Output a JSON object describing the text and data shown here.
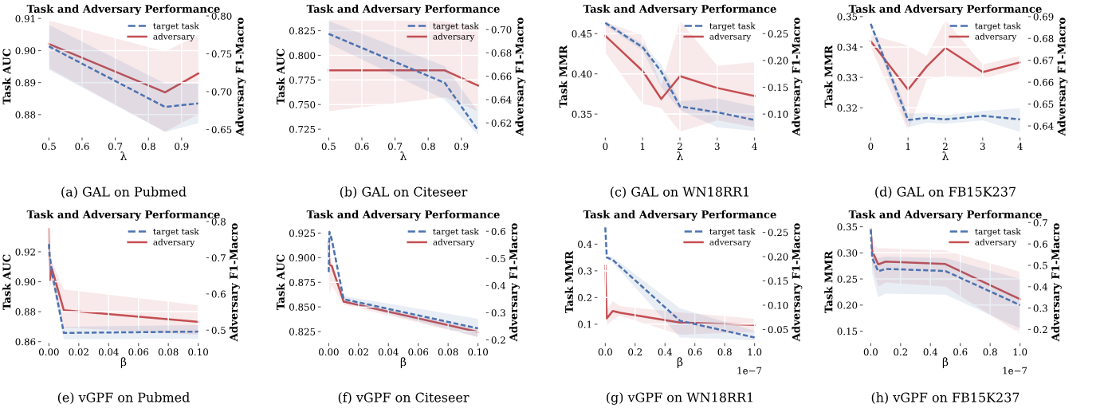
{
  "chart_data": [
    {
      "type": "line",
      "title": "Task and Adversary Performance",
      "xlabel": "λ",
      "ylabel": "Task AUC",
      "y2label": "Adversary F1-Macro",
      "annotations": [
        "(a) GAL on Pubmed"
      ],
      "legend": "top right",
      "grid": true,
      "x": [
        0.5,
        0.85,
        0.95
      ],
      "series": [
        {
          "name": "target task",
          "color": "#4c72b0",
          "line_style": "dashed",
          "values": [
            0.9013,
            0.8824,
            0.8835
          ],
          "lower": [
            0.894,
            0.8746,
            0.8773
          ],
          "upper": [
            0.908,
            0.8897,
            0.8897
          ]
        },
        {
          "name": "adversary",
          "color": "#c44e52",
          "line_style": "solid",
          "axis": "y2",
          "values": [
            0.763,
            0.699,
            0.724
          ],
          "lower": [
            0.731,
            0.647,
            0.67
          ],
          "upper": [
            0.794,
            0.753,
            0.775
          ]
        }
      ],
      "xlim": [
        0.4775,
        0.9725
      ],
      "xticks": [
        0.5,
        0.6,
        0.7,
        0.8,
        0.9
      ],
      "ylim": [
        0.873,
        0.9108
      ],
      "yticks": [
        {
          "value": 0.88,
          "label": "0.88"
        },
        {
          "value": 0.89,
          "label": "0.89"
        },
        {
          "value": 0.9,
          "label": "0.90"
        },
        {
          "value": 0.91,
          "label": "0.91"
        }
      ],
      "y2lim": [
        0.64,
        0.8
      ],
      "y2ticks": [
        {
          "value": 0.65,
          "label": "0.65"
        },
        {
          "value": 0.7,
          "label": "0.70"
        },
        {
          "value": 0.75,
          "label": "0.75"
        },
        {
          "value": 0.8,
          "label": "0.80"
        }
      ]
    },
    {
      "type": "line",
      "title": "Task and Adversary Performance",
      "xlabel": "λ",
      "ylabel": "Task AUC",
      "y2label": "Adversary F1-Macro",
      "annotations": [
        "(b) GAL on Citeseer"
      ],
      "legend": "top right",
      "grid": true,
      "x": [
        0.5,
        0.85,
        0.95
      ],
      "series": [
        {
          "name": "target task",
          "color": "#4c72b0",
          "line_style": "dashed",
          "values": [
            0.8218,
            0.772,
            0.724
          ],
          "lower": [
            0.812,
            0.755,
            0.719
          ],
          "upper": [
            0.835,
            0.789,
            0.743
          ]
        },
        {
          "name": "adversary",
          "color": "#c44e52",
          "line_style": "solid",
          "axis": "y2",
          "values": [
            0.665,
            0.665,
            0.652
          ],
          "lower": [
            0.63,
            0.642,
            0.63
          ],
          "upper": [
            0.708,
            0.707,
            0.701
          ]
        }
      ],
      "xlim": [
        0.4775,
        0.9725
      ],
      "xticks": [
        0.5,
        0.6,
        0.7,
        0.8,
        0.9
      ],
      "ylim": [
        0.717,
        0.84
      ],
      "yticks": [
        0.725,
        {
          "value": 0.75,
          "label": "0.750"
        },
        0.775,
        {
          "value": 0.8,
          "label": "0.800"
        },
        0.825
      ],
      "y2lim": [
        0.6079,
        0.7116
      ],
      "y2ticks": [
        {
          "value": 0.62,
          "label": "0.62"
        },
        {
          "value": 0.64,
          "label": "0.64"
        },
        {
          "value": 0.66,
          "label": "0.66"
        },
        {
          "value": 0.68,
          "label": "0.68"
        },
        {
          "value": 0.7,
          "label": "0.70"
        }
      ]
    },
    {
      "type": "line",
      "title": "Task and Adversary Performance",
      "xlabel": "λ",
      "ylabel": "Task MMR",
      "y2label": "Adversary F1-Macro",
      "annotations": [
        "(c) GAL on WN18RR1"
      ],
      "legend": "top right",
      "grid": true,
      "x": [
        0,
        1,
        1.5,
        2,
        3,
        4
      ],
      "series": [
        {
          "name": "target task",
          "color": "#4c72b0",
          "line_style": "dashed",
          "values": [
            0.4634,
            0.4331,
            0.4028,
            0.3595,
            0.3522,
            0.3426
          ],
          "lower": [
            0.4604,
            0.4288,
            0.3833,
            0.3552,
            0.3335,
            0.3292
          ],
          "upper": [
            0.4656,
            0.4374,
            0.4115,
            0.366,
            0.3695,
            0.3595
          ]
        },
        {
          "name": "adversary",
          "color": "#c44e52",
          "line_style": "solid",
          "axis": "y2",
          "values": [
            0.2461,
            0.1805,
            0.128,
            0.1708,
            0.1487,
            0.1338
          ],
          "lower": [
            0.215,
            0.119,
            0.111,
            0.067,
            0.0883,
            0.0753
          ],
          "upper": [
            0.272,
            0.247,
            0.153,
            0.2747,
            0.19,
            0.1968
          ]
        }
      ],
      "xlim": [
        -0.2,
        4.2
      ],
      "xticks": [
        0,
        1,
        2,
        3,
        4
      ],
      "ylim": [
        0.3214,
        0.472
      ],
      "yticks": [
        0.35,
        {
          "value": 0.4,
          "label": "0.40"
        },
        0.45
      ],
      "y2lim": [
        0.0571,
        0.2831
      ],
      "y2ticks": [
        {
          "value": 0.1,
          "label": "0.10"
        },
        0.15,
        {
          "value": 0.2,
          "label": "0.20"
        },
        0.25
      ]
    },
    {
      "type": "line",
      "title": "Task and Adversary Performance",
      "xlabel": "λ",
      "ylabel": "Task MMR",
      "y2label": "Adversary F1-Macro",
      "annotations": [
        "(d) GAL on FB15K237"
      ],
      "legend": "top right",
      "grid": true,
      "x": [
        0,
        1,
        1.5,
        2,
        3,
        4
      ],
      "series": [
        {
          "name": "target task",
          "color": "#4c72b0",
          "line_style": "dashed",
          "values": [
            0.3476,
            0.316,
            0.3167,
            0.3162,
            0.3174,
            0.3162
          ],
          "lower": [
            0.3462,
            0.3136,
            0.3151,
            0.3147,
            0.3159,
            0.3121
          ],
          "upper": [
            0.3485,
            0.3182,
            0.3182,
            0.3176,
            0.319,
            0.3199
          ]
        },
        {
          "name": "adversary",
          "color": "#c44e52",
          "line_style": "solid",
          "axis": "y2",
          "values": [
            0.6787,
            0.6566,
            0.6672,
            0.6757,
            0.6646,
            0.6691
          ],
          "lower": [
            0.676,
            0.6378,
            0.6613,
            0.6629,
            0.6617,
            0.666
          ],
          "upper": [
            0.6816,
            0.6768,
            0.672,
            0.6884,
            0.6681,
            0.672
          ]
        }
      ],
      "xlim": [
        -0.2,
        4.2
      ],
      "xticks": [
        0,
        1,
        2,
        3,
        4
      ],
      "ylim": [
        0.3104,
        0.3502
      ],
      "yticks": [
        0.32,
        0.33,
        0.34,
        0.35
      ],
      "y2lim": [
        0.6349,
        0.6903
      ],
      "y2ticks": [
        0.64,
        0.65,
        0.66,
        0.67,
        0.68,
        0.69
      ]
    },
    {
      "type": "line",
      "title": "Task and Adversary Performance",
      "xlabel": "β",
      "ylabel": "Task AUC",
      "y2label": "Adversary F1-Macro",
      "annotations": [
        "(e) vGPF on Pubmed"
      ],
      "legend": "top right",
      "grid": true,
      "x": [
        0,
        0.0005,
        0.002,
        0.01,
        0.1
      ],
      "series": [
        {
          "name": "target task",
          "color": "#4c72b0",
          "line_style": "dashed",
          "values": [
            0.9251,
            0.918,
            0.9065,
            0.8658,
            0.8667
          ],
          "lower": [
            0.921,
            0.912,
            0.9,
            0.8615,
            0.862
          ],
          "upper": [
            0.929,
            0.922,
            0.912,
            0.87,
            0.871
          ]
        },
        {
          "name": "adversary",
          "color": "#c44e52",
          "line_style": "solid",
          "axis": "y2",
          "values": [
            0.779,
            0.637,
            0.67,
            0.555,
            0.523
          ],
          "lower": [
            0.766,
            0.617,
            0.637,
            0.507,
            0.4875
          ],
          "upper": [
            0.786,
            0.699,
            0.69,
            0.6125,
            0.569
          ]
        }
      ],
      "xlim": [
        -0.005,
        0.105
      ],
      "xticks": [
        {
          "value": 0,
          "label": "0.00"
        },
        0.02,
        0.04,
        0.06,
        0.08,
        {
          "value": 0.1,
          "label": "0.10"
        }
      ],
      "ylim": [
        0.8593,
        0.9402
      ],
      "yticks": [
        0.86,
        0.88,
        {
          "value": 0.9,
          "label": "0.90"
        },
        0.92
      ],
      "y2lim": [
        0.4654,
        0.8
      ],
      "y2ticks": [
        0.5,
        0.6,
        0.7,
        0.8
      ]
    },
    {
      "type": "line",
      "title": "Task and Adversary Performance",
      "xlabel": "β",
      "ylabel": "Task AUC",
      "y2label": "Adversary F1-Macro",
      "annotations": [
        "(f) vGPF on Citeseer"
      ],
      "legend": "top right",
      "grid": true,
      "x": [
        0,
        0.0005,
        0.002,
        0.01,
        0.1
      ],
      "series": [
        {
          "name": "target task",
          "color": "#4c72b0",
          "line_style": "dashed",
          "values": [
            0.8854,
            0.9261,
            0.919,
            0.8579,
            0.8282
          ],
          "lower": [
            0.87,
            0.9209,
            0.914,
            0.855,
            0.8195
          ],
          "upper": [
            0.892,
            0.93,
            0.924,
            0.861,
            0.838
          ]
        },
        {
          "name": "adversary",
          "color": "#c44e52",
          "line_style": "solid",
          "axis": "y2",
          "values": [
            0.5615,
            0.4756,
            0.473,
            0.341,
            0.2295
          ],
          "lower": [
            0.545,
            0.37,
            0.4,
            0.33,
            0.21
          ],
          "upper": [
            0.575,
            0.49,
            0.49,
            0.35,
            0.24
          ]
        }
      ],
      "xlim": [
        -0.005,
        0.105
      ],
      "xticks": [
        {
          "value": 0,
          "label": "0.00"
        },
        0.02,
        0.04,
        0.06,
        0.08,
        {
          "value": 0.1,
          "label": "0.10"
        }
      ],
      "ylim": [
        0.8137,
        0.9367
      ],
      "yticks": [
        0.825,
        {
          "value": 0.85,
          "label": "0.850"
        },
        0.875,
        {
          "value": 0.9,
          "label": "0.900"
        },
        0.925
      ],
      "y2lim": [
        0.1897,
        0.6359
      ],
      "y2ticks": [
        0.2,
        0.3,
        0.4,
        0.5,
        0.6
      ]
    },
    {
      "type": "line",
      "title": "Task and Adversary Performance",
      "xlabel": "β",
      "ylabel": "Task MMR",
      "y2label": "Adversary F1-Macro",
      "annotations": [
        "(g) vGPF on WN18RR1",
        "1e−7"
      ],
      "legend": "top right",
      "grid": true,
      "x": [
        0,
        0.01,
        0.05,
        0.1,
        0.5,
        1.0
      ],
      "series": [
        {
          "name": "target task",
          "color": "#4c72b0",
          "line_style": "dashed",
          "values": [
            0.4626,
            0.35,
            0.341,
            0.315,
            0.113,
            0.0505
          ],
          "lower": [
            0.455,
            0.345,
            0.33,
            0.3,
            0.05,
            0.04
          ],
          "upper": [
            0.47,
            0.355,
            0.35,
            0.33,
            0.16,
            0.075
          ]
        },
        {
          "name": "adversary",
          "color": "#c44e52",
          "line_style": "solid",
          "axis": "y2",
          "values": [
            0.1812,
            0.0729,
            0.088,
            0.0844,
            0.0643,
            0.0593
          ],
          "lower": [
            0.17,
            0.058,
            0.07,
            0.078,
            0.0392,
            0.045
          ],
          "upper": [
            0.19,
            0.09,
            0.108,
            0.098,
            0.085,
            0.072
          ]
        }
      ],
      "xlim": [
        -0.05,
        1.05
      ],
      "xticks": [
        {
          "value": 0,
          "label": "0.0"
        },
        0.2,
        0.4,
        0.6,
        0.8,
        {
          "value": 1,
          "label": "1.0"
        }
      ],
      "ylim": [
        0.0309,
        0.4847
      ],
      "yticks": [
        0.1,
        0.2,
        0.3,
        0.4
      ],
      "y2lim": [
        0.0228,
        0.2722
      ],
      "y2ticks": [
        0.05,
        {
          "value": 0.1,
          "label": "0.10"
        },
        0.15,
        {
          "value": 0.2,
          "label": "0.20"
        },
        0.25
      ]
    },
    {
      "type": "line",
      "title": "Task and Adversary Performance",
      "xlabel": "β",
      "ylabel": "Task MMR",
      "y2label": "Adversary F1-Macro",
      "annotations": [
        "(h) vGPF on FB15K237",
        "1e−7"
      ],
      "legend": "top right",
      "grid": true,
      "x": [
        0,
        0.01,
        0.05,
        0.1,
        0.5,
        1.0
      ],
      "series": [
        {
          "name": "target task",
          "color": "#4c72b0",
          "line_style": "dashed",
          "values": [
            0.3447,
            0.29,
            0.2647,
            0.2693,
            0.2653,
            0.2
          ],
          "lower": [
            0.34,
            0.26,
            0.215,
            0.222,
            0.22,
            0.155
          ],
          "upper": [
            0.35,
            0.3,
            0.29,
            0.293,
            0.29,
            0.25
          ]
        },
        {
          "name": "adversary",
          "color": "#c44e52",
          "line_style": "solid",
          "axis": "y2",
          "values": [
            0.669,
            0.5664,
            0.5046,
            0.5176,
            0.5062,
            0.3417
          ],
          "lower": [
            0.66,
            0.5,
            0.4,
            0.42,
            0.4,
            0.18
          ],
          "upper": [
            0.68,
            0.6,
            0.58,
            0.58,
            0.57,
            0.47
          ]
        }
      ],
      "xlim": [
        -0.05,
        1.05
      ],
      "xticks": [
        {
          "value": 0,
          "label": "0.0"
        },
        0.2,
        0.4,
        0.6,
        0.8,
        {
          "value": 1,
          "label": "1.0"
        }
      ],
      "ylim": [
        0.128,
        0.36
      ],
      "yticks": [
        0.15,
        {
          "value": 0.2,
          "label": "0.20"
        },
        0.25,
        {
          "value": 0.3,
          "label": "0.30"
        },
        0.35
      ],
      "y2lim": [
        0.1381,
        0.7049
      ],
      "y2ticks": [
        0.2,
        0.3,
        0.4,
        0.5,
        0.6,
        0.7
      ]
    }
  ]
}
